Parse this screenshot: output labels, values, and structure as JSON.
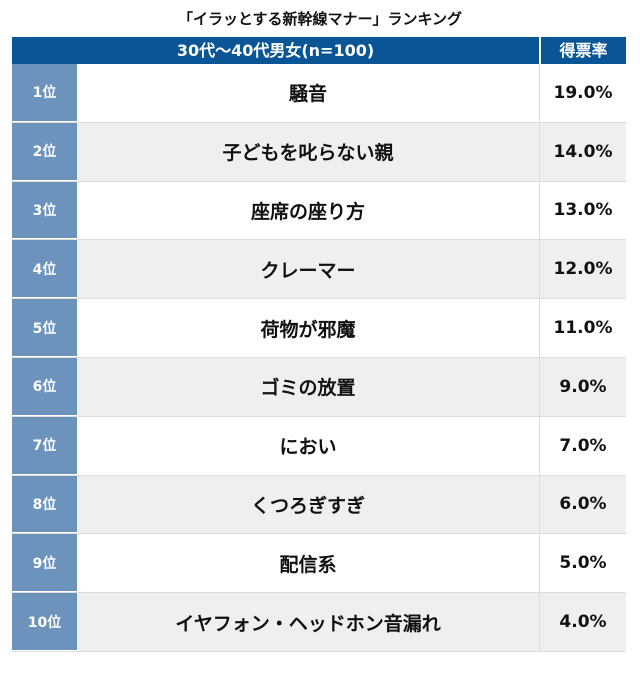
{
  "chart_data": {
    "type": "table",
    "title": "「イラッとする新幹線マナー」ランキング",
    "header": {
      "group": "30代〜40代男女(n=100)",
      "rate": "得票率"
    },
    "rows": [
      {
        "rank": "1位",
        "item": "騒音",
        "rate": "19.0%",
        "value": 19.0
      },
      {
        "rank": "2位",
        "item": "子どもを叱らない親",
        "rate": "14.0%",
        "value": 14.0
      },
      {
        "rank": "3位",
        "item": "座席の座り方",
        "rate": "13.0%",
        "value": 13.0
      },
      {
        "rank": "4位",
        "item": "クレーマー",
        "rate": "12.0%",
        "value": 12.0
      },
      {
        "rank": "5位",
        "item": "荷物が邪魔",
        "rate": "11.0%",
        "value": 11.0
      },
      {
        "rank": "6位",
        "item": "ゴミの放置",
        "rate": "9.0%",
        "value": 9.0
      },
      {
        "rank": "7位",
        "item": "におい",
        "rate": "7.0%",
        "value": 7.0
      },
      {
        "rank": "8位",
        "item": "くつろぎすぎ",
        "rate": "6.0%",
        "value": 6.0
      },
      {
        "rank": "9位",
        "item": "配信系",
        "rate": "5.0%",
        "value": 5.0
      },
      {
        "rank": "10位",
        "item": "イヤフォン・ヘッドホン音漏れ",
        "rate": "4.0%",
        "value": 4.0
      }
    ]
  },
  "colors": {
    "header": "#0a5596",
    "rank": "#6b93bb",
    "alt_row": "#efefef"
  }
}
